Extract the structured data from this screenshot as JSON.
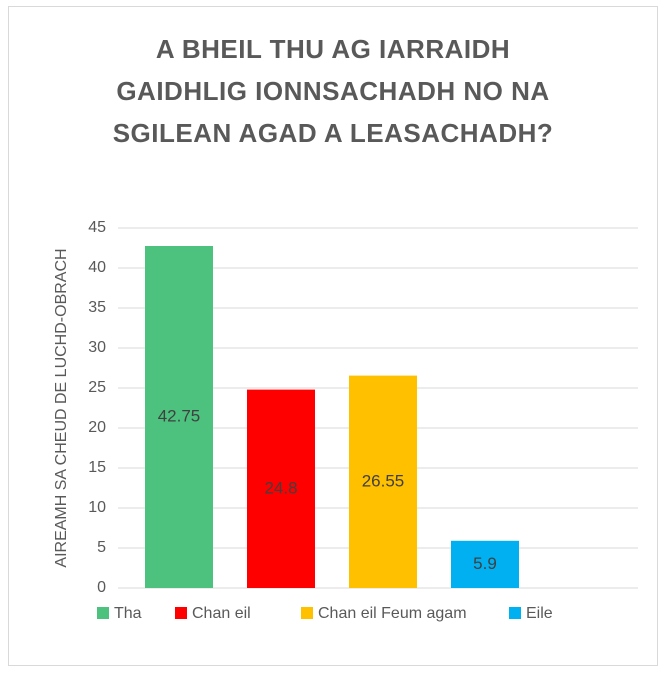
{
  "chart_data": {
    "type": "bar",
    "title": "A BHEIL THU AG IARRAIDH GAIDHLIG IONNSACHADH NO NA SGILEAN AGAD A LEASACHADH?",
    "y_label": "AIREAMH SA CHEUD DE LUCHD-OBRACH",
    "categories": [
      "Tha",
      "Chan eil",
      "Chan eil Feum agam",
      "Eile"
    ],
    "values": [
      42.75,
      24.8,
      26.55,
      5.9
    ],
    "colors": [
      "#4cc27e",
      "#ff0000",
      "#ffc000",
      "#00b0f0"
    ],
    "ylim": [
      0,
      45
    ],
    "yticks": [
      0,
      5,
      10,
      15,
      20,
      25,
      30,
      35,
      40,
      45
    ],
    "grid": true,
    "legend": "bottom"
  }
}
